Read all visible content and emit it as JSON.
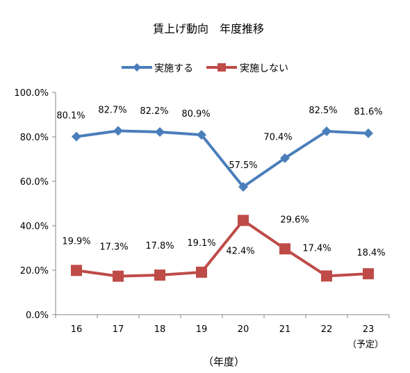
{
  "chart_data": {
    "type": "line",
    "title": "賃上げ動向　年度推移",
    "xlabel": "（年度）",
    "ylabel": "",
    "categories": [
      "16",
      "17",
      "18",
      "19",
      "20",
      "21",
      "22",
      "23"
    ],
    "category_sublabels": [
      "",
      "",
      "",
      "",
      "",
      "",
      "",
      "（予定）"
    ],
    "ylim": [
      0,
      100
    ],
    "yticks": [
      "0.0%",
      "20.0%",
      "40.0%",
      "60.0%",
      "80.0%",
      "100.0%"
    ],
    "grid": false,
    "legend_position": "top",
    "series": [
      {
        "name": "実施する",
        "color": "#4a7ebb",
        "marker": "diamond",
        "values": [
          80.1,
          82.7,
          82.2,
          80.9,
          57.5,
          70.4,
          82.5,
          81.6
        ],
        "labels": [
          "80.1%",
          "82.7%",
          "82.2%",
          "80.9%",
          "57.5%",
          "70.4%",
          "82.5%",
          "81.6%"
        ]
      },
      {
        "name": "実施しない",
        "color": "#be4b48",
        "marker": "square",
        "values": [
          19.9,
          17.3,
          17.8,
          19.1,
          42.4,
          29.6,
          17.4,
          18.4
        ],
        "labels": [
          "19.9%",
          "17.3%",
          "17.8%",
          "19.1%",
          "42.4%",
          "29.6%",
          "17.4%",
          "18.4%"
        ]
      }
    ]
  }
}
